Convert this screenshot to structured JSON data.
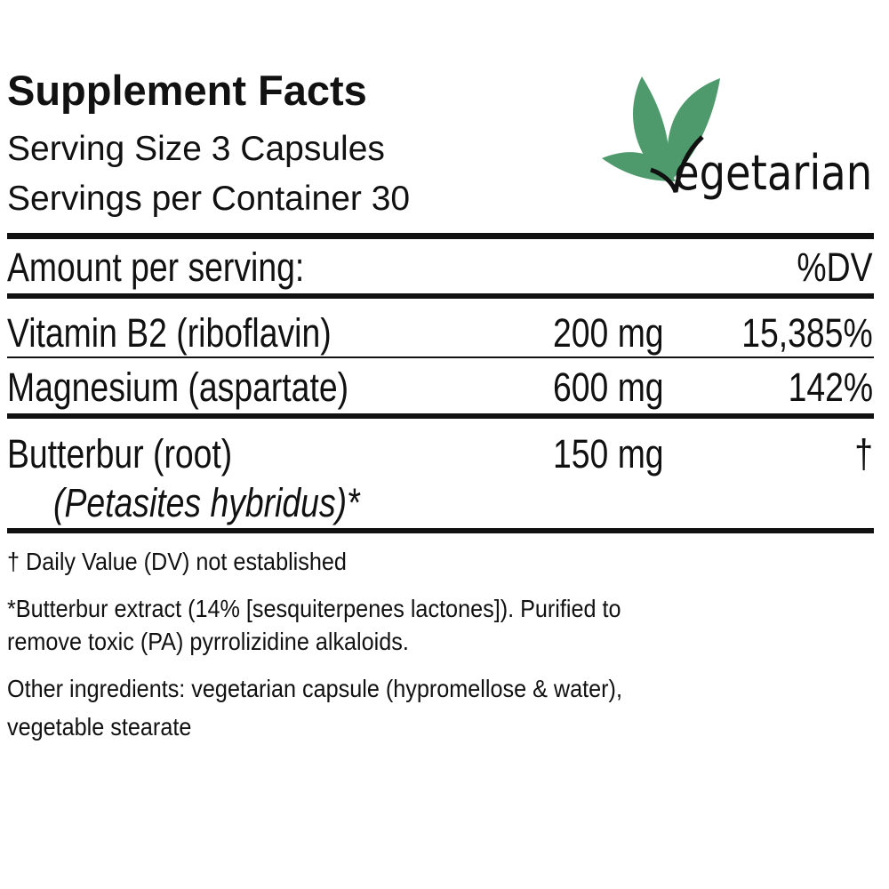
{
  "header": {
    "title": "Supplement Facts",
    "serving_size": "Serving Size 3 Capsules",
    "servings_per_container": "Servings per Container 30"
  },
  "badge": {
    "text": "egetarian",
    "full_text": "Vegetarian",
    "leaf_color": "#4e9a6c",
    "icon": "leaf-icon"
  },
  "table": {
    "header_label": "Amount per serving:",
    "header_dv": "%DV",
    "rows": [
      {
        "name": "Vitamin B2 (riboflavin)",
        "amount": "200 mg",
        "dv": "15,385%"
      },
      {
        "name": "Magnesium (aspartate)",
        "amount": "600 mg",
        "dv": "142%"
      },
      {
        "name": "Butterbur (root)",
        "subname": "(Petasites hybridus)*",
        "amount": "150 mg",
        "dv": "†"
      }
    ]
  },
  "footnotes": {
    "dv_note": "† Daily Value (DV) not established",
    "extract_note_1": "*Butterbur extract (14% [sesquiterpenes lactones]).  Purified to",
    "extract_note_2": "remove toxic (PA) pyrrolizidine alkaloids.",
    "other_1": "Other ingredients: vegetarian capsule (hypromellose & water),",
    "other_2": "vegetable stearate"
  }
}
